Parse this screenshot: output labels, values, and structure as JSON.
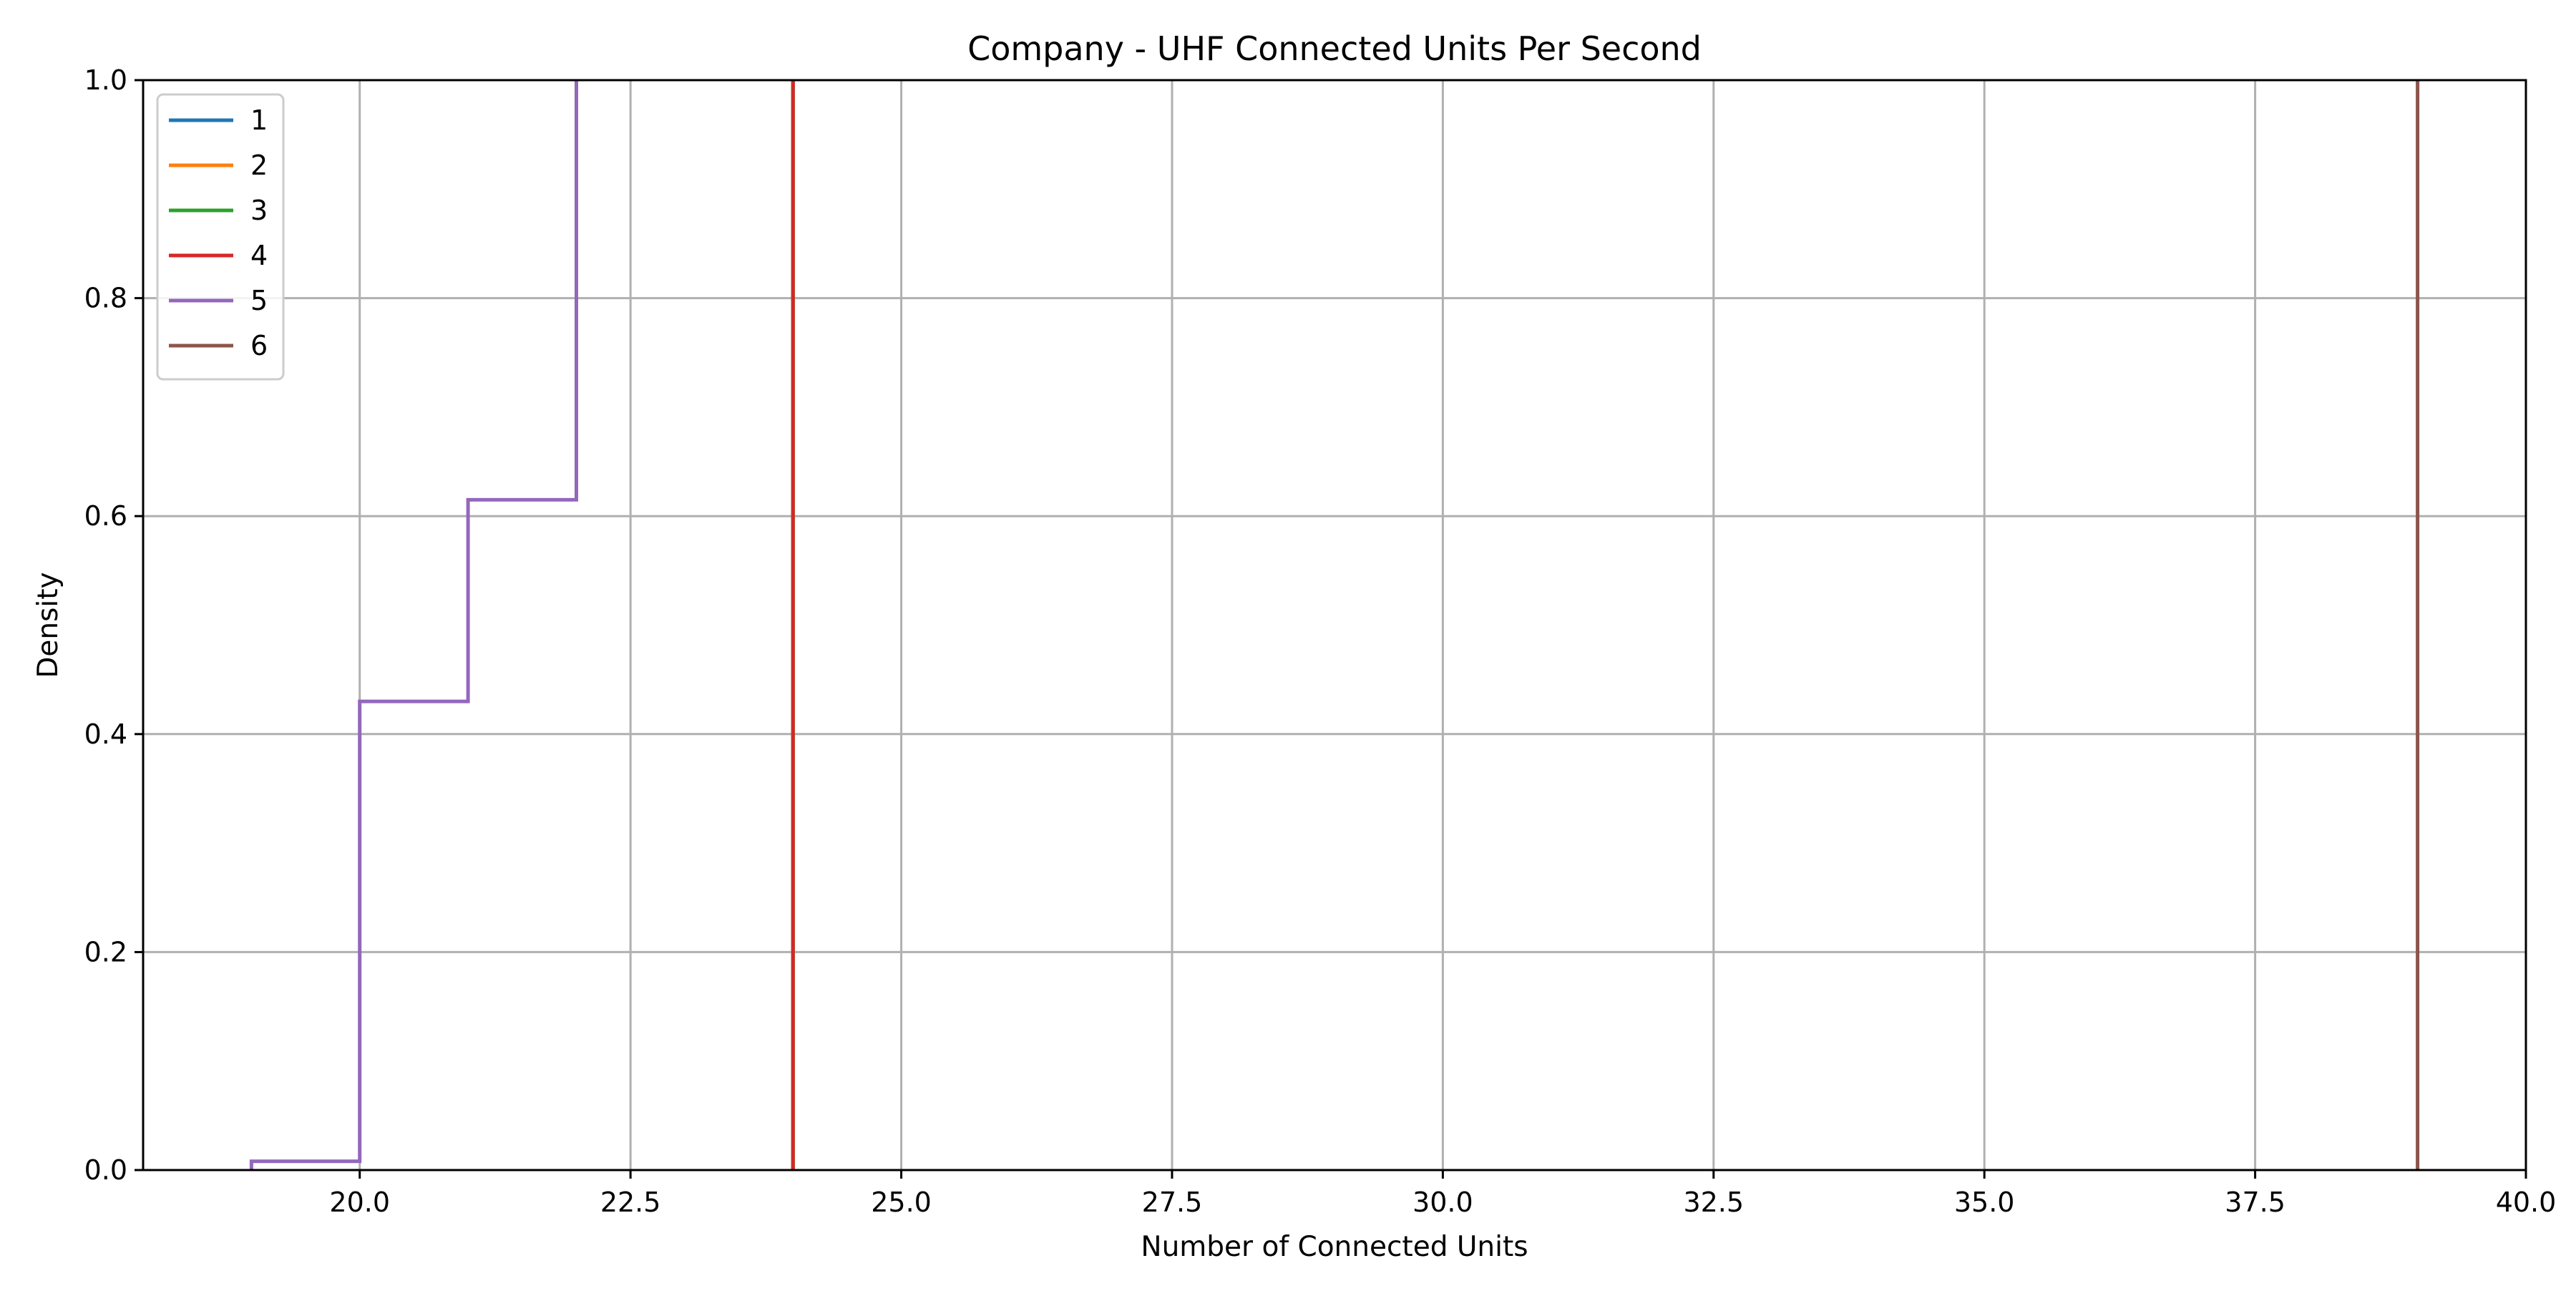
{
  "chart_data": {
    "type": "line",
    "title": "Company - UHF Connected Units Per Second",
    "xlabel": "Number of Connected Units",
    "ylabel": "Density",
    "xlim": [
      18.0,
      40.0
    ],
    "ylim": [
      0.0,
      1.0
    ],
    "x_ticks": [
      {
        "value": 20.0,
        "label": "20.0"
      },
      {
        "value": 22.5,
        "label": "22.5"
      },
      {
        "value": 25.0,
        "label": "25.0"
      },
      {
        "value": 27.5,
        "label": "27.5"
      },
      {
        "value": 30.0,
        "label": "30.0"
      },
      {
        "value": 32.5,
        "label": "32.5"
      },
      {
        "value": 35.0,
        "label": "35.0"
      },
      {
        "value": 37.5,
        "label": "37.5"
      },
      {
        "value": 40.0,
        "label": "40.0"
      }
    ],
    "y_ticks": [
      {
        "value": 0.0,
        "label": "0.0"
      },
      {
        "value": 0.2,
        "label": "0.2"
      },
      {
        "value": 0.4,
        "label": "0.4"
      },
      {
        "value": 0.6,
        "label": "0.6"
      },
      {
        "value": 0.8,
        "label": "0.8"
      },
      {
        "value": 1.0,
        "label": "1.0"
      }
    ],
    "grid": true,
    "legend_position": "upper left",
    "series": [
      {
        "name": "1",
        "color": "#1f77b4",
        "points": [
          [
            24,
            0.0
          ],
          [
            24,
            1.0
          ]
        ]
      },
      {
        "name": "2",
        "color": "#ff7f0e",
        "points": [
          [
            24,
            0.0
          ],
          [
            24,
            1.0
          ]
        ]
      },
      {
        "name": "3",
        "color": "#2ca02c",
        "points": [
          [
            24,
            0.0
          ],
          [
            24,
            1.0
          ]
        ]
      },
      {
        "name": "4",
        "color": "#d62728",
        "points": [
          [
            24,
            0.0
          ],
          [
            24,
            1.0
          ]
        ]
      },
      {
        "name": "5",
        "color": "#9467bd",
        "points": [
          [
            19,
            0.0
          ],
          [
            19,
            0.008
          ],
          [
            20,
            0.008
          ],
          [
            20,
            0.43
          ],
          [
            21,
            0.43
          ],
          [
            21,
            0.615
          ],
          [
            22,
            0.615
          ],
          [
            22,
            1.0
          ]
        ]
      },
      {
        "name": "6",
        "color": "#8c564b",
        "points": [
          [
            39,
            0.0
          ],
          [
            39,
            1.0
          ]
        ]
      }
    ]
  }
}
